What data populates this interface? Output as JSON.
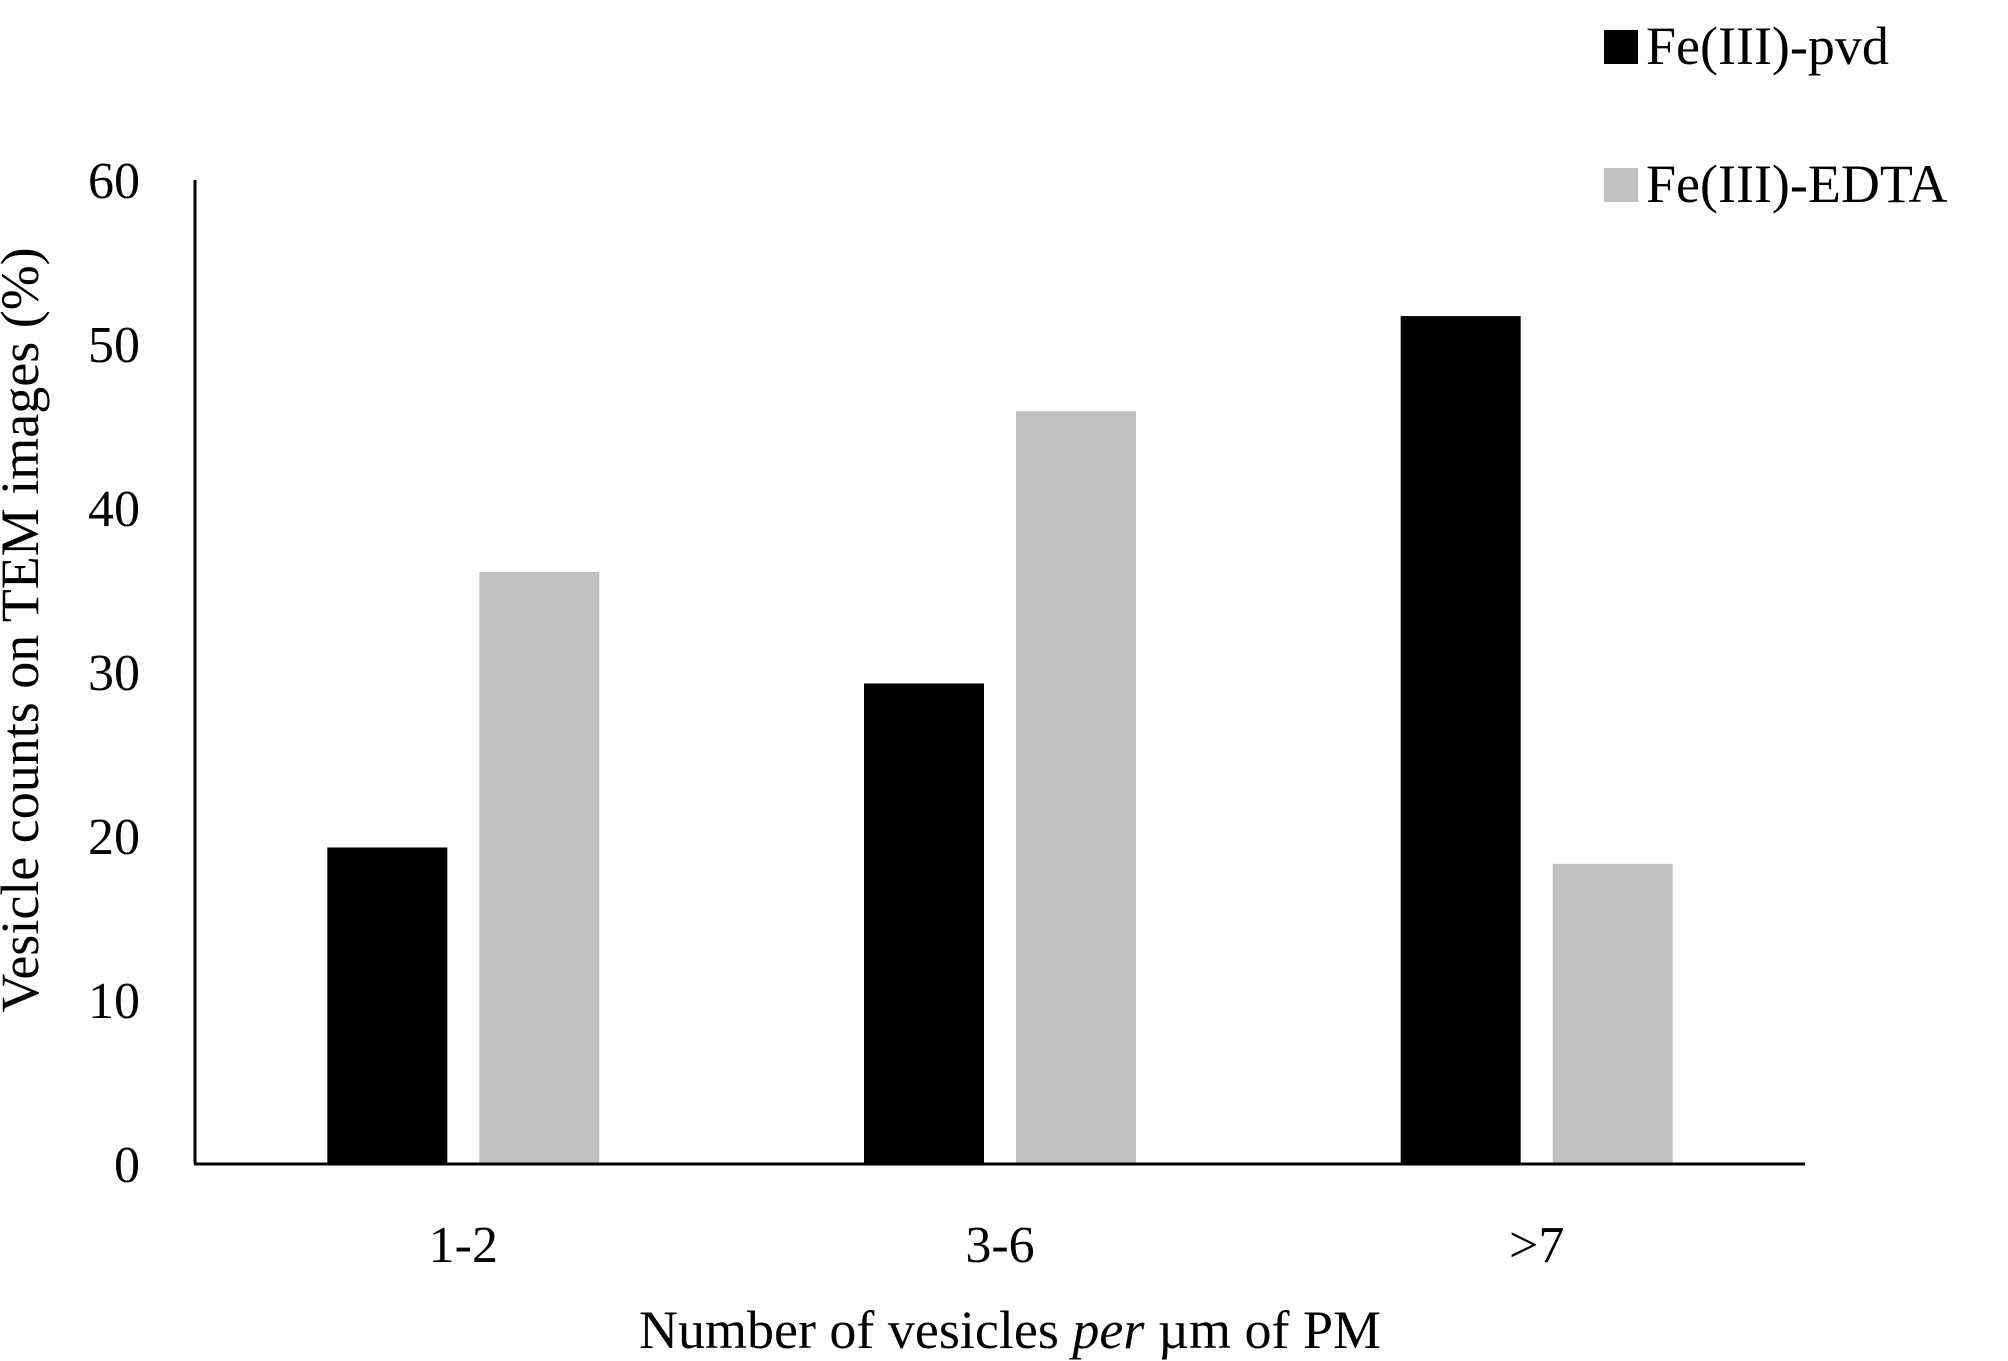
{
  "chart_data": {
    "type": "bar",
    "categories": [
      "1-2",
      "3-6",
      ">7"
    ],
    "series": [
      {
        "name": "Fe(III)-pvd",
        "values": [
          19.3,
          29.3,
          51.7
        ],
        "color": "#000000"
      },
      {
        "name": "Fe(III)-EDTA",
        "values": [
          36.1,
          45.9,
          18.3
        ],
        "color": "#c0c0c0"
      }
    ],
    "xlabel": {
      "before": "Number of vesicles ",
      "italic": "per",
      "after": " µm of PM"
    },
    "ylabel": "Vesicle counts on TEM images (%)",
    "ylim": [
      0,
      60
    ],
    "yticks": [
      "0",
      "10",
      "20",
      "30",
      "40",
      "50",
      "60"
    ],
    "grid": false,
    "legend_position": "top-right"
  }
}
